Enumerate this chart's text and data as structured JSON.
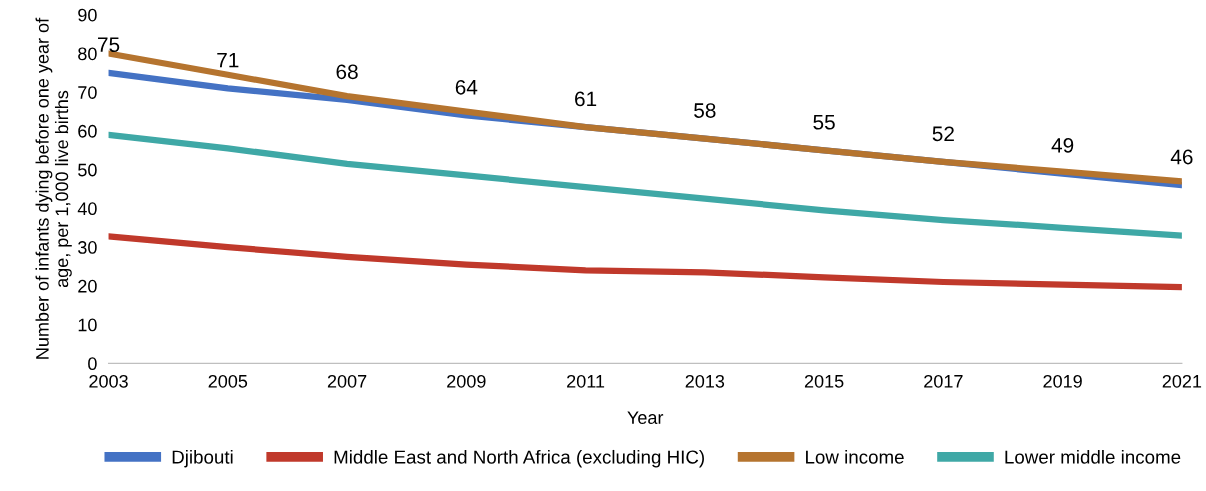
{
  "chart_data": {
    "type": "line",
    "xlabel": "Year",
    "ylabel": "Number of infants dying before one year of age, per 1,000 live births",
    "x": [
      2003,
      2005,
      2007,
      2009,
      2011,
      2013,
      2015,
      2017,
      2019,
      2021
    ],
    "xlim": [
      2003,
      2021
    ],
    "xticks": [
      2003,
      2005,
      2007,
      2009,
      2011,
      2013,
      2015,
      2017,
      2019,
      2021
    ],
    "ylim": [
      0,
      90
    ],
    "yticks": [
      0,
      10,
      20,
      30,
      40,
      50,
      60,
      70,
      80,
      90
    ],
    "grid": false,
    "legend": "bottom",
    "marker": "none",
    "line_style": "solid",
    "series": [
      {
        "name": "Djibouti",
        "color": "#4472c4",
        "values": [
          75,
          71,
          68,
          64,
          61,
          58,
          55,
          52,
          49,
          46
        ],
        "value_labels": [
          "75",
          "71",
          "68",
          "64",
          "61",
          "58",
          "55",
          "52",
          "49",
          "46"
        ]
      },
      {
        "name": "Middle East and North Africa (excluding HIC)",
        "color": "#c0392b",
        "values": [
          32.8,
          30,
          27.5,
          25.5,
          24,
          23.5,
          22.2,
          21,
          20.3,
          19.7
        ]
      },
      {
        "name": "Low income",
        "color": "#b5742f",
        "values": [
          80,
          74.5,
          69,
          65,
          61,
          58,
          55,
          52,
          49.5,
          47
        ]
      },
      {
        "name": "Lower middle income",
        "color": "#3fa8a6",
        "values": [
          59,
          55.5,
          51.5,
          48.5,
          45.5,
          42.5,
          39.5,
          37,
          35,
          33
        ]
      }
    ]
  }
}
